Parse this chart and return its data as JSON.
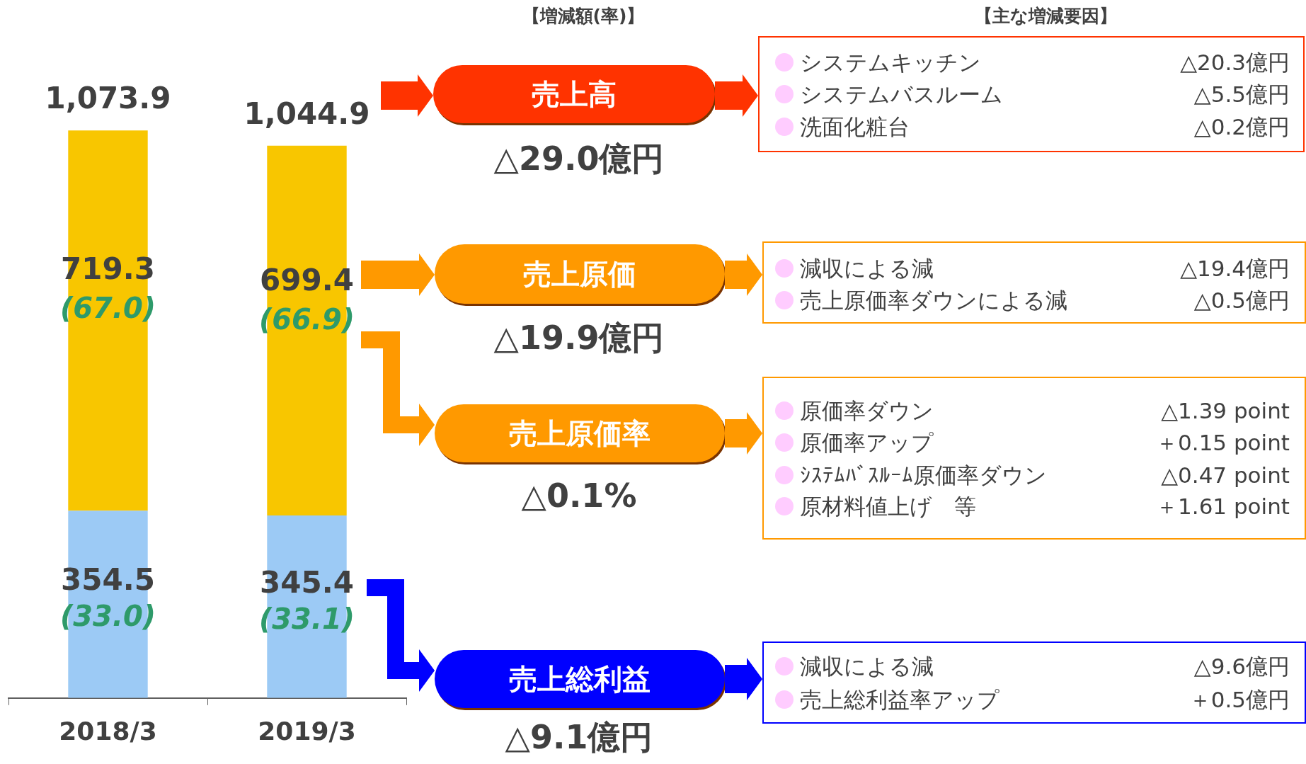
{
  "chart_data": {
    "type": "bar",
    "stacked": true,
    "categories": [
      "2018/3",
      "2019/3"
    ],
    "series": [
      {
        "color": "#9ccaf5",
        "values": [
          354.5,
          345.4
        ]
      },
      {
        "color": "#f8c600",
        "values": [
          719.3,
          699.4
        ]
      }
    ],
    "data_labels": true,
    "totals": [
      "1,073.9",
      "1,044.9"
    ],
    "annotations": [
      "(67.0)",
      "(66.9)",
      "(33.0)",
      "(33.1)",
      "【増減額(率)】",
      "【主な増減要因】",
      "売上高",
      "△29.0億円",
      "システムキッチン",
      "△20.3億円",
      "システムバスルーム",
      "△5.5億円",
      "洗面化粧台",
      "△0.2億円",
      "売上原価",
      "△19.9億円",
      "減収による減",
      "△19.4億円",
      "売上原価率ダウンによる減",
      "△0.5億円",
      "売上原価率",
      "△0.1%",
      "原価率ダウン",
      "△1.39 point",
      "原価率アップ",
      "＋0.15 point",
      "ｼｽﾃﾑﾊﾞｽﾙｰﾑ原価率ダウン",
      "△0.47 point",
      "原材料値上げ　等",
      "＋1.61 point",
      "売上総利益",
      "△9.1億円",
      "減収による減",
      "△9.6億円",
      "売上総利益率アップ",
      "＋0.5億円"
    ]
  }
}
